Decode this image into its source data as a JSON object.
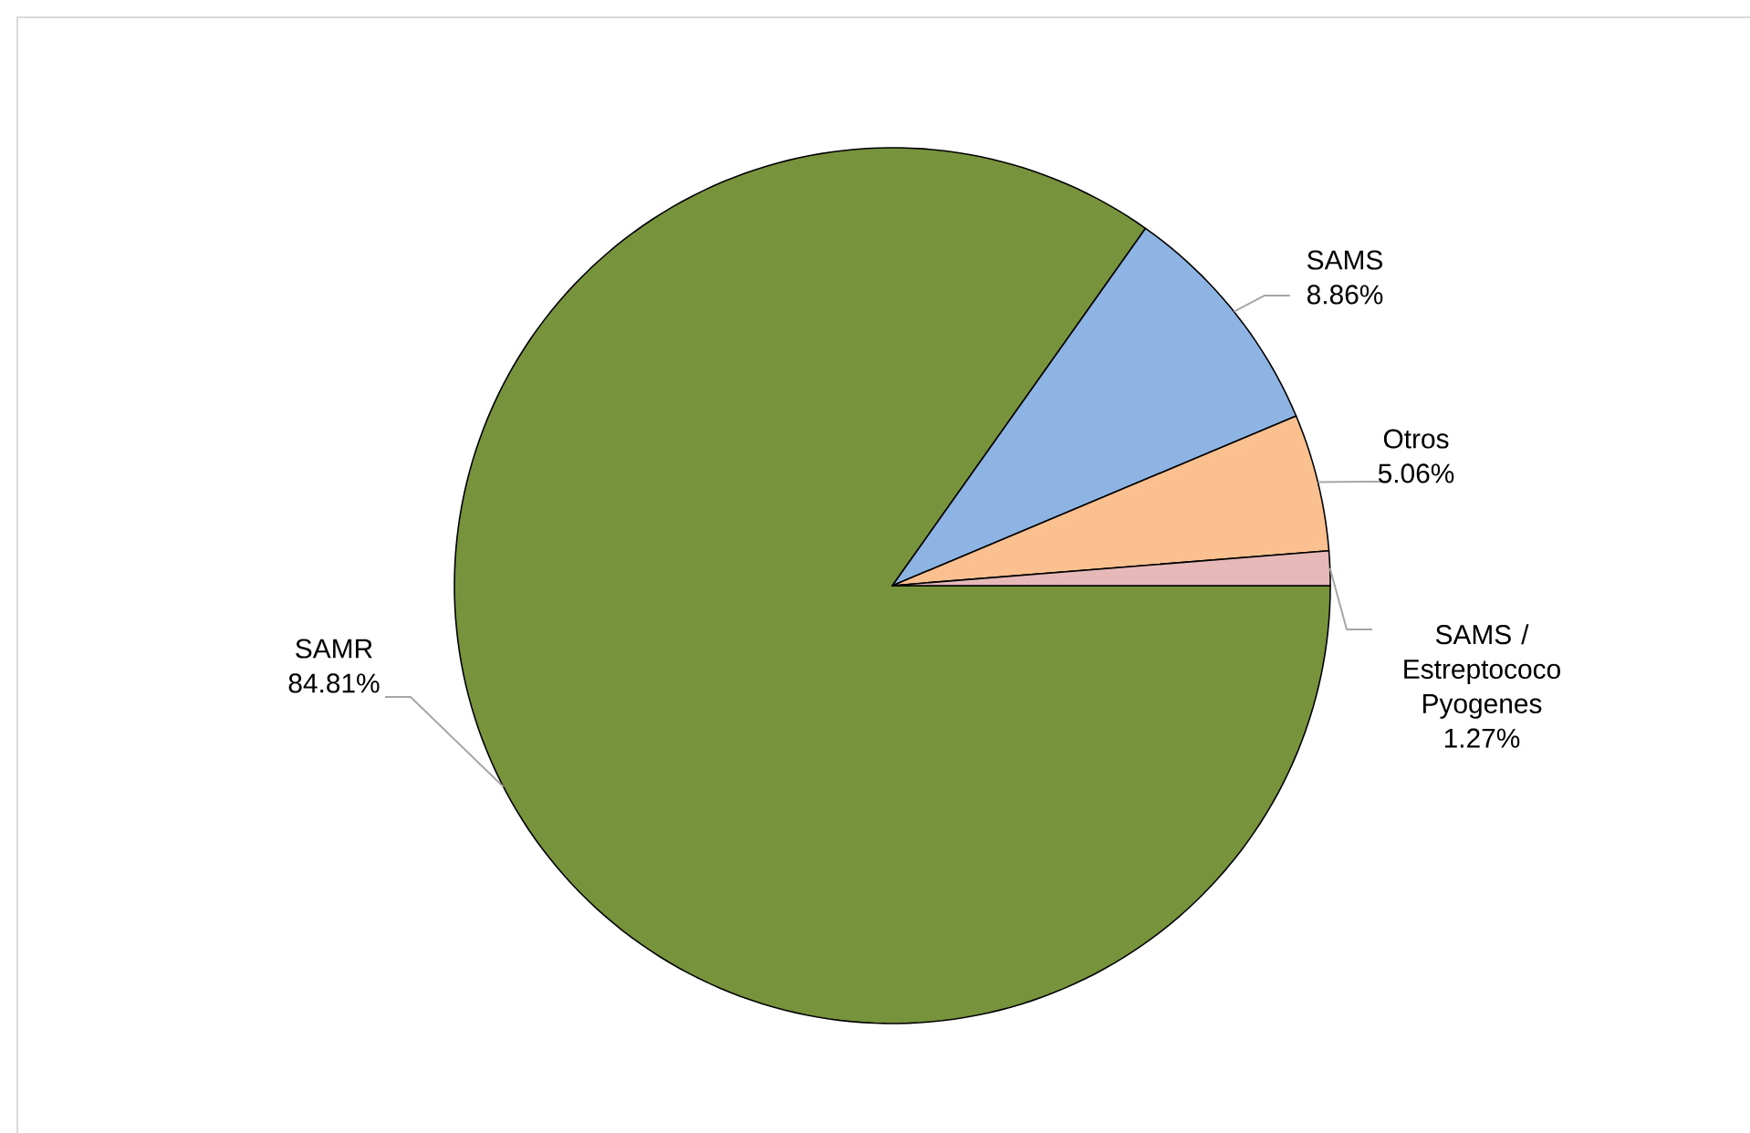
{
  "chart_data": {
    "type": "pie",
    "categories": [
      "SAMR",
      "SAMS",
      "Otros",
      "SAMS / Estreptococo Pyogenes"
    ],
    "values": [
      84.81,
      8.86,
      5.06,
      1.27
    ],
    "value_labels": [
      "84.81%",
      "8.86%",
      "5.06%",
      "1.27%"
    ],
    "colors": [
      "#77933c",
      "#8eb4e3",
      "#fac090",
      "#e6b9b8"
    ],
    "legend": false
  }
}
